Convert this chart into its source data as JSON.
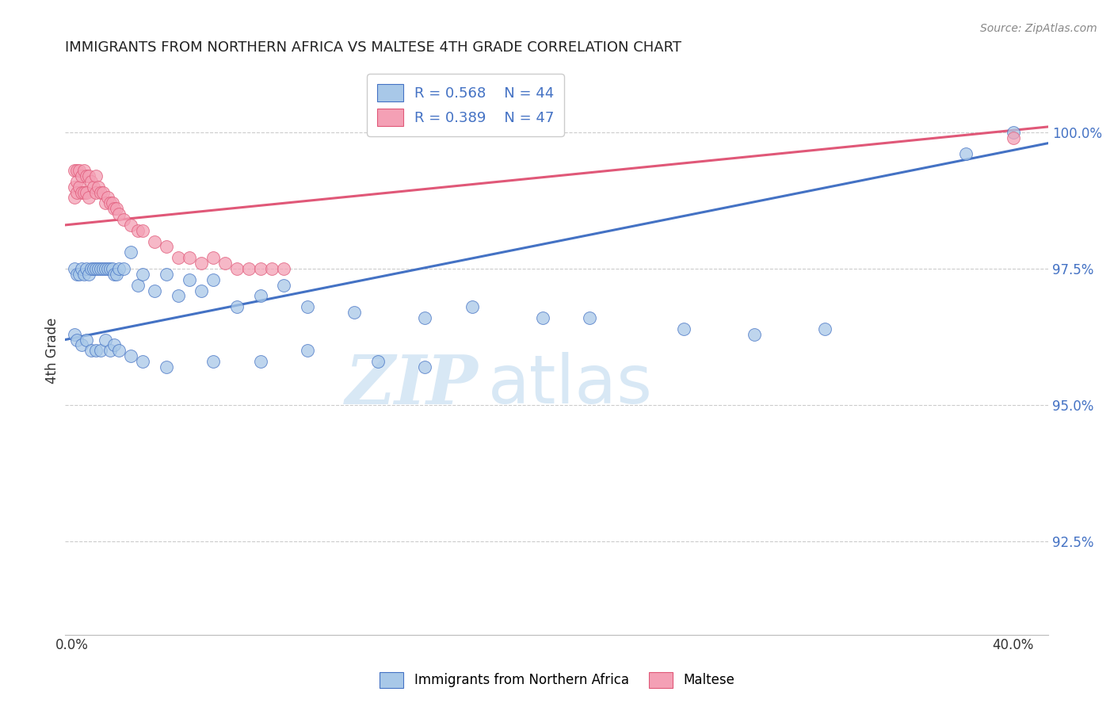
{
  "title": "IMMIGRANTS FROM NORTHERN AFRICA VS MALTESE 4TH GRADE CORRELATION CHART",
  "source": "Source: ZipAtlas.com",
  "ylabel": "4th Grade",
  "ytick_labels": [
    "92.5%",
    "95.0%",
    "97.5%",
    "100.0%"
  ],
  "ytick_values": [
    0.925,
    0.95,
    0.975,
    1.0
  ],
  "ymin": 0.908,
  "ymax": 1.012,
  "xmin": -0.003,
  "xmax": 0.415,
  "legend_r_blue": "R = 0.568",
  "legend_n_blue": "N = 44",
  "legend_r_pink": "R = 0.389",
  "legend_n_pink": "N = 47",
  "color_blue": "#A8C8E8",
  "color_pink": "#F4A0B5",
  "line_color_blue": "#4472C4",
  "line_color_pink": "#E05878",
  "watermark_zip": "ZIP",
  "watermark_atlas": "atlas",
  "watermark_color": "#D8E8F5",
  "blue_x": [
    0.001,
    0.002,
    0.003,
    0.004,
    0.005,
    0.006,
    0.007,
    0.008,
    0.009,
    0.01,
    0.011,
    0.012,
    0.013,
    0.014,
    0.015,
    0.016,
    0.017,
    0.018,
    0.019,
    0.02,
    0.022,
    0.025,
    0.028,
    0.03,
    0.035,
    0.04,
    0.045,
    0.05,
    0.055,
    0.06,
    0.07,
    0.08,
    0.09,
    0.1,
    0.12,
    0.15,
    0.17,
    0.2,
    0.22,
    0.26,
    0.29,
    0.32,
    0.38,
    0.4
  ],
  "blue_y": [
    0.975,
    0.974,
    0.974,
    0.975,
    0.974,
    0.975,
    0.974,
    0.975,
    0.975,
    0.975,
    0.975,
    0.975,
    0.975,
    0.975,
    0.975,
    0.975,
    0.975,
    0.974,
    0.974,
    0.975,
    0.975,
    0.978,
    0.972,
    0.974,
    0.971,
    0.974,
    0.97,
    0.973,
    0.971,
    0.973,
    0.968,
    0.97,
    0.972,
    0.968,
    0.967,
    0.966,
    0.968,
    0.966,
    0.966,
    0.964,
    0.963,
    0.964,
    0.996,
    1.0
  ],
  "blue_x2": [
    0.001,
    0.002,
    0.004,
    0.006,
    0.008,
    0.01,
    0.012,
    0.014,
    0.016,
    0.018,
    0.02,
    0.025,
    0.03,
    0.04,
    0.06,
    0.08,
    0.1,
    0.13,
    0.15
  ],
  "blue_y2": [
    0.963,
    0.962,
    0.961,
    0.962,
    0.96,
    0.96,
    0.96,
    0.962,
    0.96,
    0.961,
    0.96,
    0.959,
    0.958,
    0.957,
    0.958,
    0.958,
    0.96,
    0.958,
    0.957
  ],
  "pink_x": [
    0.001,
    0.001,
    0.001,
    0.002,
    0.002,
    0.002,
    0.003,
    0.003,
    0.004,
    0.004,
    0.005,
    0.005,
    0.006,
    0.006,
    0.007,
    0.007,
    0.008,
    0.009,
    0.01,
    0.01,
    0.011,
    0.012,
    0.013,
    0.014,
    0.015,
    0.016,
    0.017,
    0.018,
    0.019,
    0.02,
    0.022,
    0.025,
    0.028,
    0.03,
    0.035,
    0.04,
    0.045,
    0.05,
    0.055,
    0.06,
    0.065,
    0.07,
    0.075,
    0.08,
    0.085,
    0.09,
    0.4
  ],
  "pink_y": [
    0.993,
    0.99,
    0.988,
    0.993,
    0.991,
    0.989,
    0.993,
    0.99,
    0.992,
    0.989,
    0.993,
    0.989,
    0.992,
    0.989,
    0.992,
    0.988,
    0.991,
    0.99,
    0.992,
    0.989,
    0.99,
    0.989,
    0.989,
    0.987,
    0.988,
    0.987,
    0.987,
    0.986,
    0.986,
    0.985,
    0.984,
    0.983,
    0.982,
    0.982,
    0.98,
    0.979,
    0.977,
    0.977,
    0.976,
    0.977,
    0.976,
    0.975,
    0.975,
    0.975,
    0.975,
    0.975,
    0.999
  ],
  "blue_trendline_x": [
    -0.003,
    0.415
  ],
  "blue_trendline_y": [
    0.962,
    0.998
  ],
  "pink_trendline_x": [
    -0.003,
    0.415
  ],
  "pink_trendline_y": [
    0.983,
    1.001
  ]
}
